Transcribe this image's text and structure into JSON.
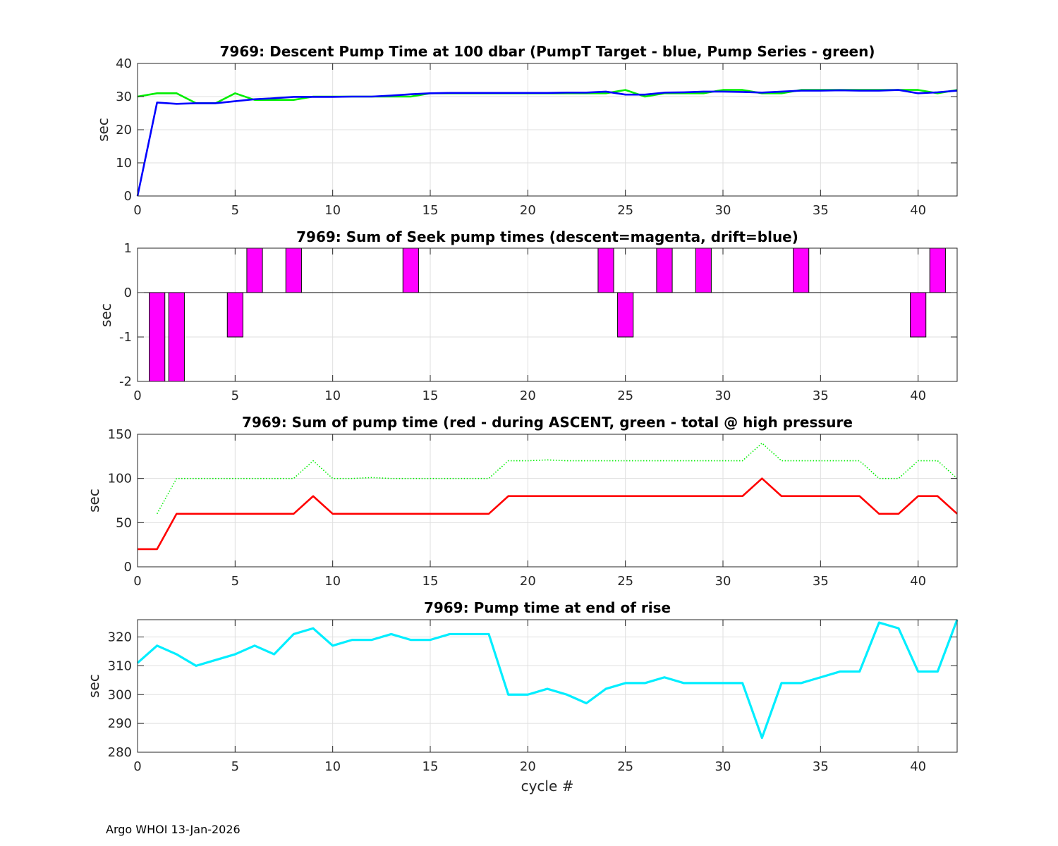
{
  "footer": "Argo WHOI 13-Jan-2026",
  "colors": {
    "blue": "#0000ff",
    "green": "#00ee00",
    "magenta": "#ff00ff",
    "red": "#ff0000",
    "cyan": "#00eeff"
  },
  "chart_data": [
    {
      "type": "line",
      "title": "7969: Descent Pump Time at 100 dbar (PumpT Target - blue, Pump Series - green)",
      "xlabel": "",
      "ylabel": "sec",
      "xlim": [
        0,
        42
      ],
      "ylim": [
        0,
        40
      ],
      "xticks": [
        0,
        5,
        10,
        15,
        20,
        25,
        30,
        35,
        40
      ],
      "yticks": [
        0,
        10,
        20,
        30,
        40
      ],
      "grid": true,
      "series": [
        {
          "name": "Pump Series",
          "color": "#00ee00",
          "style": "solid",
          "x": [
            0,
            1,
            2,
            3,
            4,
            5,
            6,
            7,
            8,
            9,
            10,
            11,
            12,
            13,
            14,
            15,
            16,
            17,
            18,
            19,
            20,
            21,
            22,
            23,
            24,
            25,
            26,
            27,
            28,
            29,
            30,
            31,
            32,
            33,
            34,
            35,
            36,
            37,
            38,
            39,
            40,
            41,
            42
          ],
          "values": [
            30,
            31,
            31,
            28,
            28,
            31,
            29,
            29,
            29,
            30,
            30,
            30,
            30,
            30,
            30,
            31,
            31,
            31,
            31,
            31,
            31,
            31,
            31,
            31,
            31,
            32,
            30,
            31,
            31,
            31,
            32,
            32,
            31,
            31,
            32,
            32,
            32,
            32,
            32,
            32,
            32,
            31,
            32
          ]
        },
        {
          "name": "PumpT Target",
          "color": "#0000ff",
          "style": "solid",
          "x": [
            0,
            1,
            2,
            3,
            4,
            5,
            6,
            7,
            8,
            9,
            10,
            11,
            12,
            13,
            14,
            15,
            16,
            17,
            18,
            19,
            20,
            21,
            22,
            23,
            24,
            25,
            26,
            27,
            28,
            29,
            30,
            31,
            32,
            33,
            34,
            35,
            36,
            37,
            38,
            39,
            40,
            41,
            42
          ],
          "values": [
            0,
            28.2,
            27.8,
            28,
            28,
            28.6,
            29.2,
            29.5,
            29.9,
            29.9,
            29.9,
            30,
            30,
            30.3,
            30.7,
            31,
            31.1,
            31.1,
            31.1,
            31.1,
            31.1,
            31.1,
            31.2,
            31.2,
            31.5,
            30.6,
            30.6,
            31.2,
            31.3,
            31.5,
            31.5,
            31.4,
            31.2,
            31.5,
            31.8,
            31.8,
            31.9,
            31.8,
            31.8,
            32,
            31,
            31.3,
            31.8
          ]
        }
      ]
    },
    {
      "type": "bar",
      "title": "7969: Sum of Seek pump times (descent=magenta, drift=blue)",
      "xlabel": "",
      "ylabel": "sec",
      "xlim": [
        0,
        42
      ],
      "ylim": [
        -2,
        1
      ],
      "xticks": [
        0,
        5,
        10,
        15,
        20,
        25,
        30,
        35,
        40
      ],
      "yticks": [
        -2,
        -1,
        0,
        1
      ],
      "grid": true,
      "series": [
        {
          "name": "descent",
          "color": "#ff00ff",
          "x": [
            1,
            2,
            5,
            6,
            8,
            14,
            24,
            25,
            27,
            29,
            34,
            40,
            41
          ],
          "values": [
            -2,
            -2,
            -1,
            1,
            1,
            1,
            1,
            -1,
            1,
            1,
            1,
            -1,
            1
          ]
        }
      ]
    },
    {
      "type": "line",
      "title": "7969: Sum of pump time (red - during ASCENT, green - total @ high pressure",
      "xlabel": "",
      "ylabel": "sec",
      "xlim": [
        0,
        42
      ],
      "ylim": [
        0,
        150
      ],
      "xticks": [
        0,
        5,
        10,
        15,
        20,
        25,
        30,
        35,
        40
      ],
      "yticks": [
        0,
        50,
        100,
        150
      ],
      "grid": true,
      "series": [
        {
          "name": "total @ high pressure",
          "color": "#00ee00",
          "style": "dotted",
          "x": [
            1,
            2,
            3,
            4,
            5,
            6,
            7,
            8,
            9,
            10,
            11,
            12,
            13,
            14,
            15,
            16,
            17,
            18,
            19,
            20,
            21,
            22,
            23,
            24,
            25,
            26,
            27,
            28,
            29,
            30,
            31,
            32,
            33,
            34,
            35,
            36,
            37,
            38,
            39,
            40,
            41,
            42
          ],
          "values": [
            60,
            100,
            100,
            100,
            100,
            100,
            100,
            100,
            120,
            100,
            100,
            101,
            100,
            100,
            100,
            100,
            100,
            100,
            120,
            120,
            121,
            120,
            120,
            120,
            120,
            120,
            120,
            120,
            120,
            120,
            120,
            140,
            120,
            120,
            120,
            120,
            120,
            100,
            100,
            120,
            120,
            100
          ]
        },
        {
          "name": "during ASCENT",
          "color": "#ff0000",
          "style": "solid",
          "x": [
            0,
            1,
            2,
            3,
            4,
            5,
            6,
            7,
            8,
            9,
            10,
            11,
            12,
            13,
            14,
            15,
            16,
            17,
            18,
            19,
            20,
            21,
            22,
            23,
            24,
            25,
            26,
            27,
            28,
            29,
            30,
            31,
            32,
            33,
            34,
            35,
            36,
            37,
            38,
            39,
            40,
            41,
            42
          ],
          "values": [
            20,
            20,
            60,
            60,
            60,
            60,
            60,
            60,
            60,
            80,
            60,
            60,
            60,
            60,
            60,
            60,
            60,
            60,
            60,
            80,
            80,
            80,
            80,
            80,
            80,
            80,
            80,
            80,
            80,
            80,
            80,
            80,
            100,
            80,
            80,
            80,
            80,
            80,
            60,
            60,
            80,
            80,
            60
          ]
        }
      ]
    },
    {
      "type": "line",
      "title": "7969: Pump time at end of rise",
      "xlabel": "cycle #",
      "ylabel": "sec",
      "xlim": [
        0,
        42
      ],
      "ylim": [
        280,
        326
      ],
      "xticks": [
        0,
        5,
        10,
        15,
        20,
        25,
        30,
        35,
        40
      ],
      "yticks": [
        280,
        290,
        300,
        310,
        320
      ],
      "grid": true,
      "series": [
        {
          "name": "end of rise",
          "color": "#00eeff",
          "style": "solid",
          "x": [
            0,
            1,
            2,
            3,
            4,
            5,
            6,
            7,
            8,
            9,
            10,
            11,
            12,
            13,
            14,
            15,
            16,
            17,
            18,
            19,
            20,
            21,
            22,
            23,
            24,
            25,
            26,
            27,
            28,
            29,
            30,
            31,
            32,
            33,
            34,
            35,
            36,
            37,
            38,
            39,
            40,
            41,
            42
          ],
          "values": [
            311,
            317,
            314,
            310,
            312,
            314,
            317,
            314,
            321,
            323,
            317,
            319,
            319,
            321,
            319,
            319,
            321,
            321,
            321,
            300,
            300,
            302,
            300,
            297,
            302,
            304,
            304,
            306,
            304,
            304,
            304,
            304,
            285,
            304,
            304,
            306,
            308,
            308,
            325,
            323,
            308,
            308,
            326
          ]
        }
      ]
    }
  ]
}
